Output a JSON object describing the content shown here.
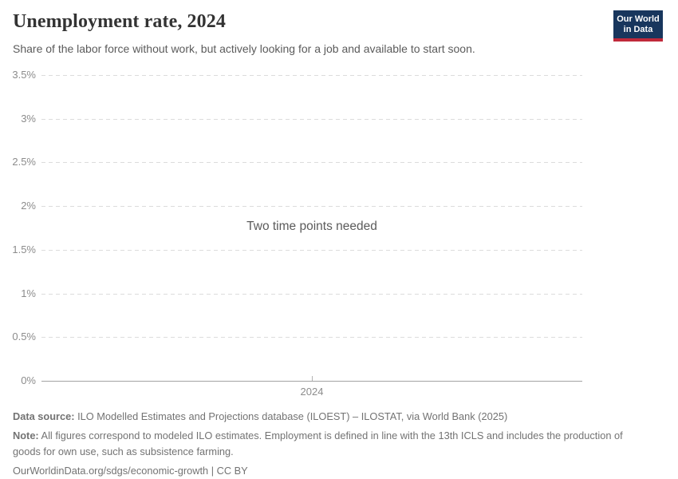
{
  "header": {
    "title": "Unemployment rate, 2024",
    "subtitle": "Share of the labor force without work, but actively looking for a job and available to start soon."
  },
  "logo": {
    "text_line1": "Our World",
    "text_line2": "in Data",
    "background_color": "#18365d",
    "accent_color": "#c0293a",
    "text_color": "#ffffff"
  },
  "chart_data": {
    "type": "line",
    "title": "Unemployment rate, 2024",
    "message": "Two time points needed",
    "series": [],
    "x_axis": {
      "ticks": [
        "2024"
      ]
    },
    "y_axis": {
      "min": 0,
      "max": 3.5,
      "ticks": [
        {
          "label": "3.5%",
          "value": 3.5
        },
        {
          "label": "3%",
          "value": 3
        },
        {
          "label": "2.5%",
          "value": 2.5
        },
        {
          "label": "2%",
          "value": 2
        },
        {
          "label": "1.5%",
          "value": 1.5
        },
        {
          "label": "1%",
          "value": 1
        },
        {
          "label": "0.5%",
          "value": 0.5
        },
        {
          "label": "0%",
          "value": 0
        }
      ]
    },
    "grid": true,
    "legend": "none",
    "gridline_color": "#dcdcdc",
    "axis_line_color": "#a3a3a3",
    "tick_label_color": "#8c8c8c"
  },
  "footer": {
    "data_source_label": "Data source:",
    "data_source_text": " ILO Modelled Estimates and Projections database (ILOEST) – ILOSTAT, via World Bank (2025)",
    "note_label": "Note:",
    "note_text": " All figures correspond to modeled ILO estimates. Employment is defined in line with the 13th ICLS and includes the production of goods for own use, such as subsistence farming.",
    "url": "OurWorldinData.org/sdgs/economic-growth",
    "separator": " | ",
    "license": "CC BY"
  }
}
